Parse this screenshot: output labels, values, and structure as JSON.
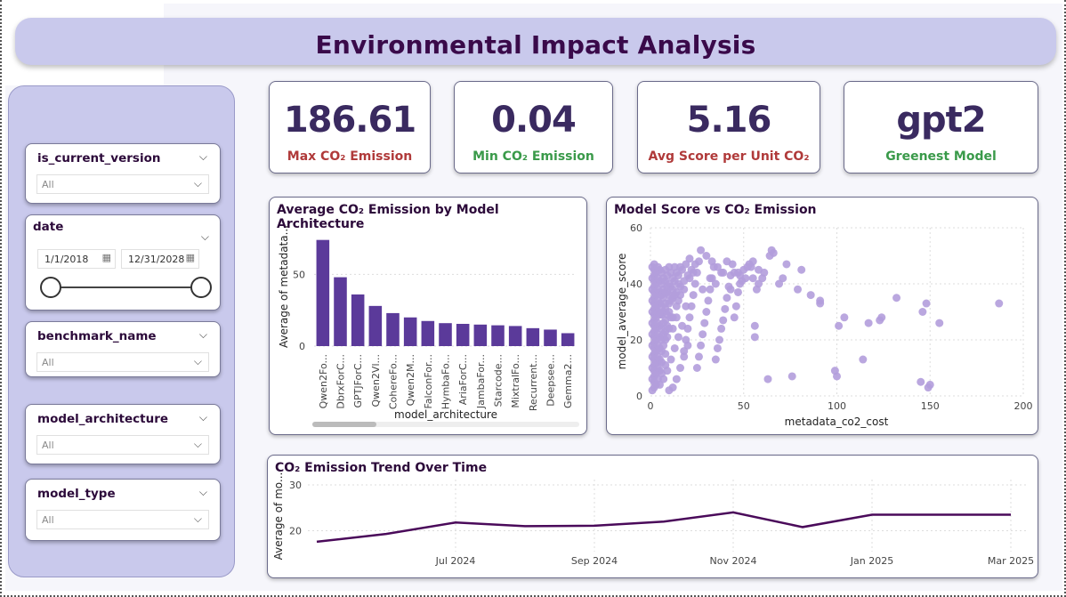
{
  "dashboard": {
    "title": "Environmental Impact Analysis"
  },
  "filters": {
    "is_current_version": {
      "label": "is_current_version",
      "value": "All"
    },
    "date": {
      "label": "date",
      "start": "1/1/2018",
      "end": "12/31/2028"
    },
    "benchmark_name": {
      "label": "benchmark_name",
      "value": "All"
    },
    "model_architecture": {
      "label": "model_architecture",
      "value": "All"
    },
    "model_type": {
      "label": "model_type",
      "value": "All"
    }
  },
  "kpis": [
    {
      "value": "186.61",
      "label": "Max CO₂ Emission",
      "color": "#b03a3a"
    },
    {
      "value": "0.04",
      "label": "Min CO₂ Emission",
      "color": "#3a9a4a"
    },
    {
      "value": "5.16",
      "label": "Avg Score per Unit CO₂",
      "color": "#b03a3a"
    },
    {
      "value": "gpt2",
      "label": "Greenest Model",
      "color": "#3a9a4a"
    }
  ],
  "colors": {
    "bar": "#5b3a9a",
    "scatter": "#b39ddb",
    "line": "#4a0a5a",
    "panel": "#c9c9ec"
  },
  "chart_data": [
    {
      "type": "bar",
      "title": "Average CO₂ Emission by Model Architecture",
      "xlabel": "model_architecture",
      "ylabel": "Average of metadata...",
      "categories": [
        "Qwen2Fo...",
        "DbrxForC...",
        "GPTJForC...",
        "Qwen2Vl...",
        "CohereFo...",
        "Qwen2M...",
        "FalconFor...",
        "HymbaFo...",
        "AriaForC...",
        "JambaFor...",
        "Starcode...",
        "MixtralFo...",
        "Recurrent...",
        "Deepsee...",
        "Gemma2..."
      ],
      "values": [
        74,
        48,
        36,
        28,
        23,
        20,
        17.5,
        16,
        15.5,
        15,
        14.5,
        14,
        12.5,
        11.5,
        9
      ],
      "ylim": [
        0,
        80
      ],
      "yticks": [
        0,
        50
      ],
      "grid": true
    },
    {
      "type": "scatter",
      "title": "Model Score vs CO₂ Emission",
      "xlabel": "metadata_co2_cost",
      "ylabel": "model_average_score",
      "xlim": [
        0,
        200
      ],
      "ylim": [
        0,
        60
      ],
      "xticks": [
        0,
        50,
        100,
        150,
        200
      ],
      "yticks": [
        0,
        20,
        40,
        60
      ],
      "grid": true,
      "points": [
        [
          187,
          33
        ],
        [
          155,
          26
        ],
        [
          148,
          33
        ],
        [
          146,
          30
        ],
        [
          150,
          4
        ],
        [
          149,
          3
        ],
        [
          145,
          5
        ],
        [
          132,
          35
        ],
        [
          124,
          28
        ],
        [
          123,
          27
        ],
        [
          117,
          26
        ],
        [
          114,
          13
        ],
        [
          104,
          28
        ],
        [
          101,
          25
        ],
        [
          100,
          7
        ],
        [
          99,
          9
        ],
        [
          91,
          34
        ],
        [
          91,
          33
        ],
        [
          86,
          36
        ],
        [
          81,
          45
        ],
        [
          79,
          38
        ],
        [
          76,
          7
        ],
        [
          73,
          47
        ],
        [
          71,
          42
        ],
        [
          69,
          40
        ],
        [
          66,
          51
        ],
        [
          65,
          52
        ],
        [
          64,
          50
        ],
        [
          63,
          6
        ],
        [
          61,
          44
        ],
        [
          60,
          42
        ],
        [
          58,
          40
        ],
        [
          57,
          38
        ],
        [
          56,
          25
        ],
        [
          56,
          21
        ],
        [
          55,
          48
        ],
        [
          54,
          46
        ],
        [
          53,
          47
        ],
        [
          51,
          42
        ],
        [
          50,
          45
        ],
        [
          49,
          41
        ],
        [
          48,
          40
        ],
        [
          47,
          37
        ],
        [
          46,
          32
        ],
        [
          45,
          28
        ],
        [
          44,
          47
        ],
        [
          43,
          43
        ],
        [
          42,
          39
        ],
        [
          41,
          35
        ],
        [
          40,
          31
        ],
        [
          39,
          27
        ],
        [
          38,
          24
        ],
        [
          37,
          20
        ],
        [
          36,
          17
        ],
        [
          35,
          13
        ],
        [
          34,
          46
        ],
        [
          33,
          42
        ],
        [
          32,
          38
        ],
        [
          31,
          34
        ],
        [
          30,
          30
        ],
        [
          29,
          26
        ],
        [
          28,
          22
        ],
        [
          27,
          18
        ],
        [
          26,
          14
        ],
        [
          25,
          10
        ],
        [
          27,
          52
        ],
        [
          26,
          48
        ],
        [
          25,
          44
        ],
        [
          24,
          40
        ],
        [
          23,
          36
        ],
        [
          22,
          32
        ],
        [
          21,
          28
        ],
        [
          20,
          24
        ],
        [
          19,
          20
        ],
        [
          18,
          16
        ],
        [
          24,
          47
        ],
        [
          22,
          45
        ],
        [
          20,
          43
        ],
        [
          18,
          41
        ],
        [
          16,
          39
        ],
        [
          14,
          37
        ],
        [
          12,
          35
        ],
        [
          10,
          33
        ],
        [
          8,
          31
        ],
        [
          6,
          29
        ],
        [
          21,
          49
        ],
        [
          19,
          47
        ],
        [
          17,
          45
        ],
        [
          15,
          43
        ],
        [
          13,
          41
        ],
        [
          11,
          39
        ],
        [
          9,
          37
        ],
        [
          7,
          35
        ],
        [
          5,
          33
        ],
        [
          3,
          31
        ],
        [
          20,
          18
        ],
        [
          18,
          14
        ],
        [
          16,
          10
        ],
        [
          14,
          6
        ],
        [
          12,
          3
        ],
        [
          10,
          2
        ],
        [
          17,
          25
        ],
        [
          15,
          21
        ],
        [
          13,
          17
        ],
        [
          11,
          13
        ],
        [
          9,
          9
        ],
        [
          7,
          6
        ],
        [
          5,
          4
        ],
        [
          4,
          12
        ],
        [
          6,
          16
        ],
        [
          8,
          20
        ],
        [
          10,
          24
        ],
        [
          12,
          28
        ],
        [
          14,
          32
        ],
        [
          16,
          36
        ],
        [
          30,
          50
        ],
        [
          33,
          48
        ],
        [
          36,
          46
        ],
        [
          38,
          44
        ],
        [
          41,
          48
        ],
        [
          45,
          44
        ],
        [
          48,
          43
        ],
        [
          52,
          46
        ],
        [
          55,
          42
        ],
        [
          58,
          45
        ],
        [
          2,
          47
        ],
        [
          2,
          45
        ],
        [
          2,
          43
        ],
        [
          2,
          41
        ],
        [
          2,
          39
        ],
        [
          2,
          37
        ],
        [
          2,
          35
        ],
        [
          2,
          33
        ],
        [
          2,
          31
        ],
        [
          2,
          29
        ],
        [
          2,
          27
        ],
        [
          2,
          25
        ],
        [
          2,
          23
        ],
        [
          2,
          21
        ],
        [
          2,
          19
        ],
        [
          2,
          17
        ],
        [
          2,
          15
        ],
        [
          2,
          13
        ],
        [
          2,
          11
        ],
        [
          2,
          9
        ],
        [
          2,
          7
        ],
        [
          2,
          5
        ],
        [
          2,
          3
        ],
        [
          1,
          46
        ],
        [
          1,
          42
        ],
        [
          1,
          38
        ],
        [
          1,
          34
        ],
        [
          1,
          30
        ],
        [
          1,
          26
        ],
        [
          1,
          22
        ],
        [
          1,
          18
        ],
        [
          1,
          14
        ],
        [
          1,
          10
        ],
        [
          1,
          6
        ],
        [
          1,
          2
        ],
        [
          3,
          44
        ],
        [
          3,
          40
        ],
        [
          3,
          36
        ],
        [
          3,
          32
        ],
        [
          3,
          28
        ],
        [
          3,
          24
        ],
        [
          3,
          20
        ],
        [
          3,
          16
        ],
        [
          3,
          12
        ],
        [
          3,
          8
        ],
        [
          3,
          4
        ],
        [
          4,
          46
        ],
        [
          4,
          42
        ],
        [
          4,
          38
        ],
        [
          4,
          34
        ],
        [
          4,
          30
        ],
        [
          4,
          26
        ],
        [
          4,
          22
        ],
        [
          4,
          18
        ],
        [
          4,
          14
        ],
        [
          4,
          10
        ],
        [
          4,
          6
        ],
        [
          5,
          45
        ],
        [
          5,
          41
        ],
        [
          5,
          37
        ],
        [
          5,
          29
        ],
        [
          5,
          25
        ],
        [
          5,
          21
        ],
        [
          5,
          17
        ],
        [
          5,
          13
        ],
        [
          5,
          9
        ],
        [
          6,
          44
        ],
        [
          6,
          40
        ],
        [
          6,
          36
        ],
        [
          6,
          32
        ],
        [
          6,
          24
        ],
        [
          6,
          20
        ],
        [
          6,
          12
        ],
        [
          6,
          8
        ],
        [
          7,
          42
        ],
        [
          7,
          38
        ],
        [
          7,
          30
        ],
        [
          7,
          26
        ],
        [
          7,
          22
        ],
        [
          7,
          18
        ],
        [
          8,
          45
        ],
        [
          8,
          41
        ],
        [
          8,
          37
        ],
        [
          8,
          33
        ],
        [
          8,
          27
        ],
        [
          8,
          23
        ],
        [
          8,
          15
        ],
        [
          8,
          11
        ],
        [
          9,
          43
        ],
        [
          9,
          39
        ],
        [
          9,
          29
        ],
        [
          9,
          25
        ],
        [
          9,
          21
        ],
        [
          10,
          46
        ],
        [
          10,
          40
        ],
        [
          10,
          36
        ],
        [
          10,
          30
        ],
        [
          11,
          44
        ],
        [
          11,
          34
        ],
        [
          11,
          28
        ],
        [
          12,
          42
        ],
        [
          12,
          38
        ],
        [
          12,
          24
        ],
        [
          13,
          46
        ],
        [
          13,
          36
        ],
        [
          14,
          44
        ],
        [
          14,
          28
        ],
        [
          15,
          40
        ],
        [
          15,
          34
        ],
        [
          16,
          46
        ],
        [
          18,
          38
        ],
        [
          19,
          32
        ],
        [
          21,
          42
        ],
        [
          23,
          44
        ],
        [
          28,
          38
        ],
        [
          32,
          42
        ],
        [
          35,
          40
        ],
        [
          39,
          44
        ],
        [
          43,
          38
        ],
        [
          47,
          44
        ]
      ]
    },
    {
      "type": "line",
      "title": "CO₂ Emission Trend Over Time",
      "ylabel": "Average of mo...",
      "x": [
        "May 2024",
        "Jun 2024",
        "Jul 2024",
        "Aug 2024",
        "Sep 2024",
        "Oct 2024",
        "Nov 2024",
        "Dec 2024",
        "Jan 2025",
        "Feb 2025",
        "Mar 2025"
      ],
      "values": [
        17.6,
        19.3,
        21.8,
        21.0,
        21.1,
        22.0,
        24.0,
        20.8,
        23.5,
        23.5,
        23.5
      ],
      "xticks": [
        "Jul 2024",
        "Sep 2024",
        "Nov 2024",
        "Jan 2025",
        "Mar 2025"
      ],
      "yticks": [
        20,
        30
      ],
      "ylim": [
        17,
        30
      ],
      "grid": true
    }
  ]
}
